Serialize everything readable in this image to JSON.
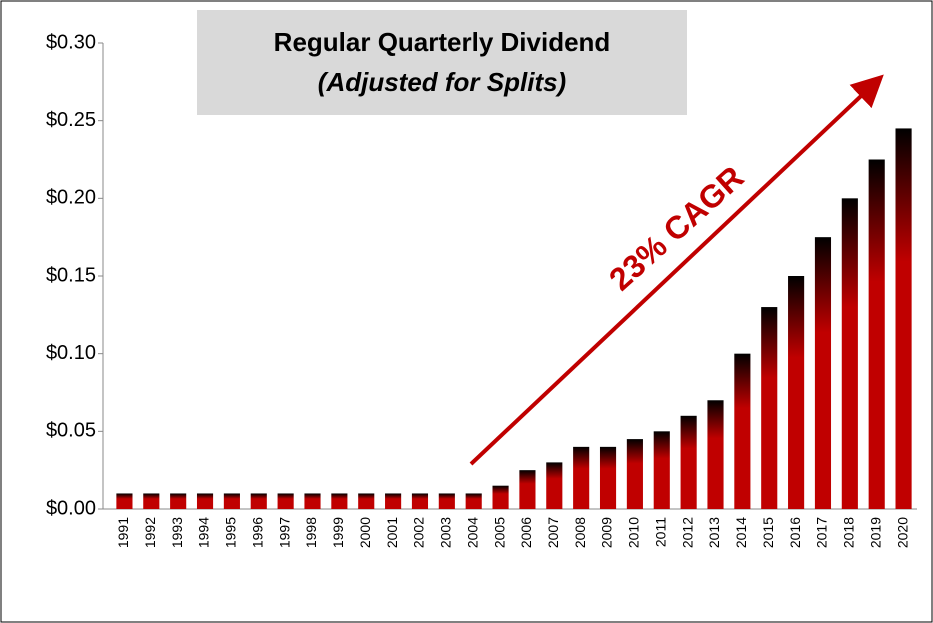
{
  "chart_data": {
    "type": "bar",
    "title": "Regular Quarterly Dividend",
    "subtitle": "(Adjusted for Splits)",
    "annotation": "23% CAGR",
    "categories": [
      "1991",
      "1992",
      "1993",
      "1994",
      "1995",
      "1996",
      "1997",
      "1998",
      "1999",
      "2000",
      "2001",
      "2002",
      "2003",
      "2004",
      "2005",
      "2006",
      "2007",
      "2008",
      "2009",
      "2010",
      "2011",
      "2012",
      "2013",
      "2014",
      "2015",
      "2016",
      "2017",
      "2018",
      "2019",
      "2020"
    ],
    "values": [
      0.01,
      0.01,
      0.01,
      0.01,
      0.01,
      0.01,
      0.01,
      0.01,
      0.01,
      0.01,
      0.01,
      0.01,
      0.01,
      0.01,
      0.015,
      0.025,
      0.03,
      0.04,
      0.04,
      0.045,
      0.05,
      0.06,
      0.07,
      0.1,
      0.13,
      0.15,
      0.175,
      0.2,
      0.225,
      0.245
    ],
    "color": "#c00000",
    "ylim": [
      0,
      0.3
    ],
    "yticks": [
      {
        "value": 0,
        "label": "$0.00"
      },
      {
        "value": 0.05,
        "label": "$0.05"
      },
      {
        "value": 0.1,
        "label": "$0.10"
      },
      {
        "value": 0.15,
        "label": "$0.15"
      },
      {
        "value": 0.2,
        "label": "$0.20"
      },
      {
        "value": 0.25,
        "label": "$0.25"
      },
      {
        "value": 0.3,
        "label": "$0.30"
      }
    ],
    "grid": false
  }
}
